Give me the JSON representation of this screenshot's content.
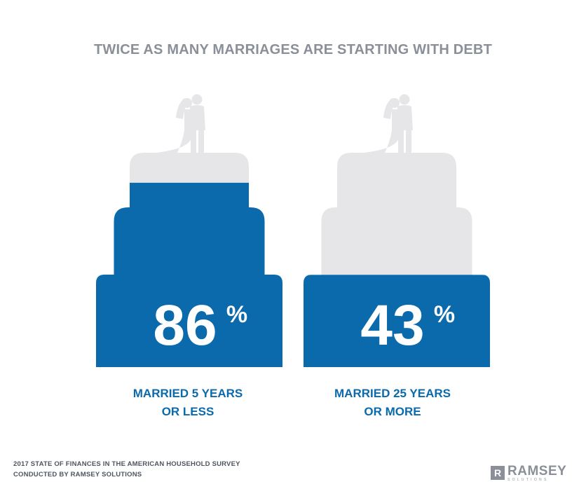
{
  "chart_data": {
    "type": "bar",
    "title": "TWICE AS MANY MARRIAGES ARE STARTING WITH DEBT",
    "categories": [
      "MARRIED 5 YEARS OR LESS",
      "MARRIED 25 YEARS OR MORE"
    ],
    "label_lines": [
      [
        "MARRIED 5 YEARS",
        "OR LESS"
      ],
      [
        "MARRIED 25 YEARS",
        "OR MORE"
      ]
    ],
    "values": [
      86,
      43
    ],
    "value_labels": [
      "86",
      "43"
    ],
    "unit": "%",
    "ylim": [
      0,
      100
    ]
  },
  "colors": {
    "fill": "#0a6aab",
    "empty": "#e6e6e8",
    "title": "#8a8f98",
    "label": "#0a6aab",
    "footer": "#4e5560"
  },
  "icons": [
    "wedding-couple-topper-icon",
    "ramsey-r-logo-icon"
  ],
  "footer": {
    "line1": "2017 STATE OF FINANCES IN THE AMERICAN HOUSEHOLD SURVEY",
    "line2": "CONDUCTED BY RAMSEY SOLUTIONS"
  },
  "brand": {
    "mark": "R",
    "name": "RAMSEY",
    "sub": "SOLUTIONS"
  }
}
